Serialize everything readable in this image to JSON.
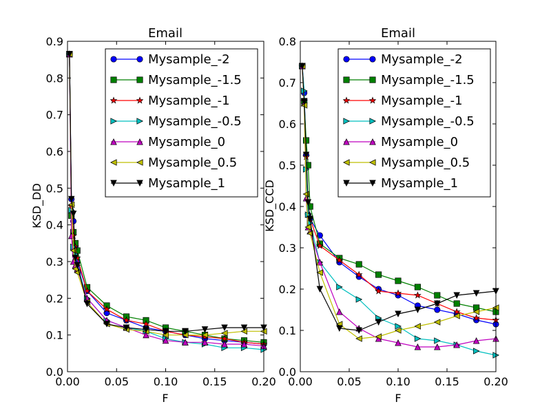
{
  "chart_data": [
    {
      "type": "line",
      "title": "Email",
      "xlabel": "F",
      "ylabel": "KSD_DD",
      "xlim": [
        0.0,
        0.2
      ],
      "ylim": [
        0.0,
        0.9
      ],
      "xticks": [
        0.0,
        0.05,
        0.1,
        0.15,
        0.2
      ],
      "xtick_labels": [
        "0.00",
        "0.05",
        "0.10",
        "0.15",
        "0.20"
      ],
      "yticks": [
        0.0,
        0.1,
        0.2,
        0.3,
        0.4,
        0.5,
        0.6,
        0.7,
        0.8,
        0.9
      ],
      "ytick_labels": [
        "0.0",
        "0.1",
        "0.2",
        "0.3",
        "0.4",
        "0.5",
        "0.6",
        "0.7",
        "0.8",
        "0.9"
      ],
      "grid": false,
      "legend_position": "top-right",
      "x": [
        0.002,
        0.004,
        0.006,
        0.008,
        0.01,
        0.02,
        0.04,
        0.06,
        0.08,
        0.1,
        0.12,
        0.14,
        0.16,
        0.18,
        0.2
      ],
      "series": [
        {
          "name": "Mysample_-2",
          "color": "#0000ff",
          "marker": "circle",
          "values": [
            0.865,
            0.47,
            0.41,
            0.34,
            0.3,
            0.22,
            0.16,
            0.14,
            0.12,
            0.11,
            0.1,
            0.09,
            0.085,
            0.08,
            0.075
          ]
        },
        {
          "name": "Mysample_-1.5",
          "color": "#008000",
          "marker": "square",
          "values": [
            0.865,
            0.425,
            0.38,
            0.35,
            0.33,
            0.23,
            0.18,
            0.15,
            0.14,
            0.12,
            0.11,
            0.1,
            0.09,
            0.085,
            0.08
          ]
        },
        {
          "name": "Mysample_-1",
          "color": "#ff0000",
          "marker": "star",
          "values": [
            0.865,
            0.45,
            0.37,
            0.34,
            0.31,
            0.22,
            0.17,
            0.14,
            0.13,
            0.11,
            0.1,
            0.095,
            0.09,
            0.08,
            0.075
          ]
        },
        {
          "name": "Mysample_-0.5",
          "color": "#00bfbf",
          "marker": "triangle-right",
          "values": [
            0.865,
            0.44,
            0.34,
            0.32,
            0.29,
            0.2,
            0.14,
            0.12,
            0.11,
            0.09,
            0.08,
            0.075,
            0.065,
            0.065,
            0.06
          ]
        },
        {
          "name": "Mysample_0",
          "color": "#bf00bf",
          "marker": "triangle-up",
          "values": [
            0.865,
            0.37,
            0.3,
            0.29,
            0.28,
            0.2,
            0.14,
            0.12,
            0.1,
            0.085,
            0.08,
            0.08,
            0.075,
            0.075,
            0.07
          ]
        },
        {
          "name": "Mysample_0.5",
          "color": "#bfbf00",
          "marker": "triangle-left",
          "values": [
            0.865,
            0.455,
            0.33,
            0.28,
            0.27,
            0.19,
            0.13,
            0.115,
            0.11,
            0.1,
            0.1,
            0.1,
            0.105,
            0.11,
            0.11
          ]
        },
        {
          "name": "Mysample_1",
          "color": "#000000",
          "marker": "triangle-down",
          "values": [
            0.865,
            0.47,
            0.43,
            0.31,
            0.29,
            0.185,
            0.13,
            0.12,
            0.115,
            0.11,
            0.11,
            0.115,
            0.12,
            0.12,
            0.12
          ]
        }
      ]
    },
    {
      "type": "line",
      "title": "Email",
      "xlabel": "F",
      "ylabel": "KSD_CCD",
      "xlim": [
        0.0,
        0.2
      ],
      "ylim": [
        0.0,
        0.8
      ],
      "xticks": [
        0.0,
        0.05,
        0.1,
        0.15,
        0.2
      ],
      "xtick_labels": [
        "0.00",
        "0.05",
        "0.10",
        "0.15",
        "0.20"
      ],
      "yticks": [
        0.0,
        0.1,
        0.2,
        0.3,
        0.4,
        0.5,
        0.6,
        0.7,
        0.8
      ],
      "ytick_labels": [
        "0.0",
        "0.1",
        "0.2",
        "0.3",
        "0.4",
        "0.5",
        "0.6",
        "0.7",
        "0.8"
      ],
      "grid": false,
      "legend_position": "top-right",
      "x": [
        0.002,
        0.004,
        0.006,
        0.008,
        0.01,
        0.02,
        0.04,
        0.06,
        0.08,
        0.1,
        0.12,
        0.14,
        0.16,
        0.18,
        0.2
      ],
      "series": [
        {
          "name": "Mysample_-2",
          "color": "#0000ff",
          "marker": "circle",
          "values": [
            0.74,
            0.675,
            0.525,
            0.38,
            0.37,
            0.33,
            0.265,
            0.23,
            0.2,
            0.185,
            0.16,
            0.15,
            0.14,
            0.125,
            0.115
          ]
        },
        {
          "name": "Mysample_-1.5",
          "color": "#008000",
          "marker": "square",
          "values": [
            0.74,
            0.655,
            0.56,
            0.5,
            0.4,
            0.31,
            0.275,
            0.26,
            0.235,
            0.22,
            0.205,
            0.185,
            0.165,
            0.155,
            0.145
          ]
        },
        {
          "name": "Mysample_-1",
          "color": "#ff0000",
          "marker": "star",
          "values": [
            0.74,
            0.655,
            0.52,
            0.38,
            0.37,
            0.305,
            0.27,
            0.235,
            0.195,
            0.19,
            0.185,
            0.165,
            0.145,
            0.13,
            0.125
          ]
        },
        {
          "name": "Mysample_-0.5",
          "color": "#00bfbf",
          "marker": "triangle-right",
          "values": [
            0.74,
            0.68,
            0.49,
            0.38,
            0.36,
            0.265,
            0.205,
            0.175,
            0.13,
            0.11,
            0.08,
            0.075,
            0.065,
            0.05,
            0.04
          ]
        },
        {
          "name": "Mysample_0",
          "color": "#bf00bf",
          "marker": "triangle-up",
          "values": [
            0.74,
            0.65,
            0.42,
            0.35,
            0.34,
            0.265,
            0.145,
            0.105,
            0.08,
            0.07,
            0.06,
            0.06,
            0.065,
            0.075,
            0.08
          ]
        },
        {
          "name": "Mysample_0.5",
          "color": "#bfbf00",
          "marker": "triangle-left",
          "values": [
            0.74,
            0.645,
            0.43,
            0.35,
            0.335,
            0.24,
            0.115,
            0.08,
            0.085,
            0.1,
            0.11,
            0.12,
            0.135,
            0.145,
            0.155
          ]
        },
        {
          "name": "Mysample_1",
          "color": "#000000",
          "marker": "triangle-down",
          "values": [
            0.74,
            0.655,
            0.525,
            0.41,
            0.37,
            0.2,
            0.105,
            0.1,
            0.12,
            0.14,
            0.15,
            0.165,
            0.185,
            0.19,
            0.195
          ]
        }
      ]
    }
  ]
}
